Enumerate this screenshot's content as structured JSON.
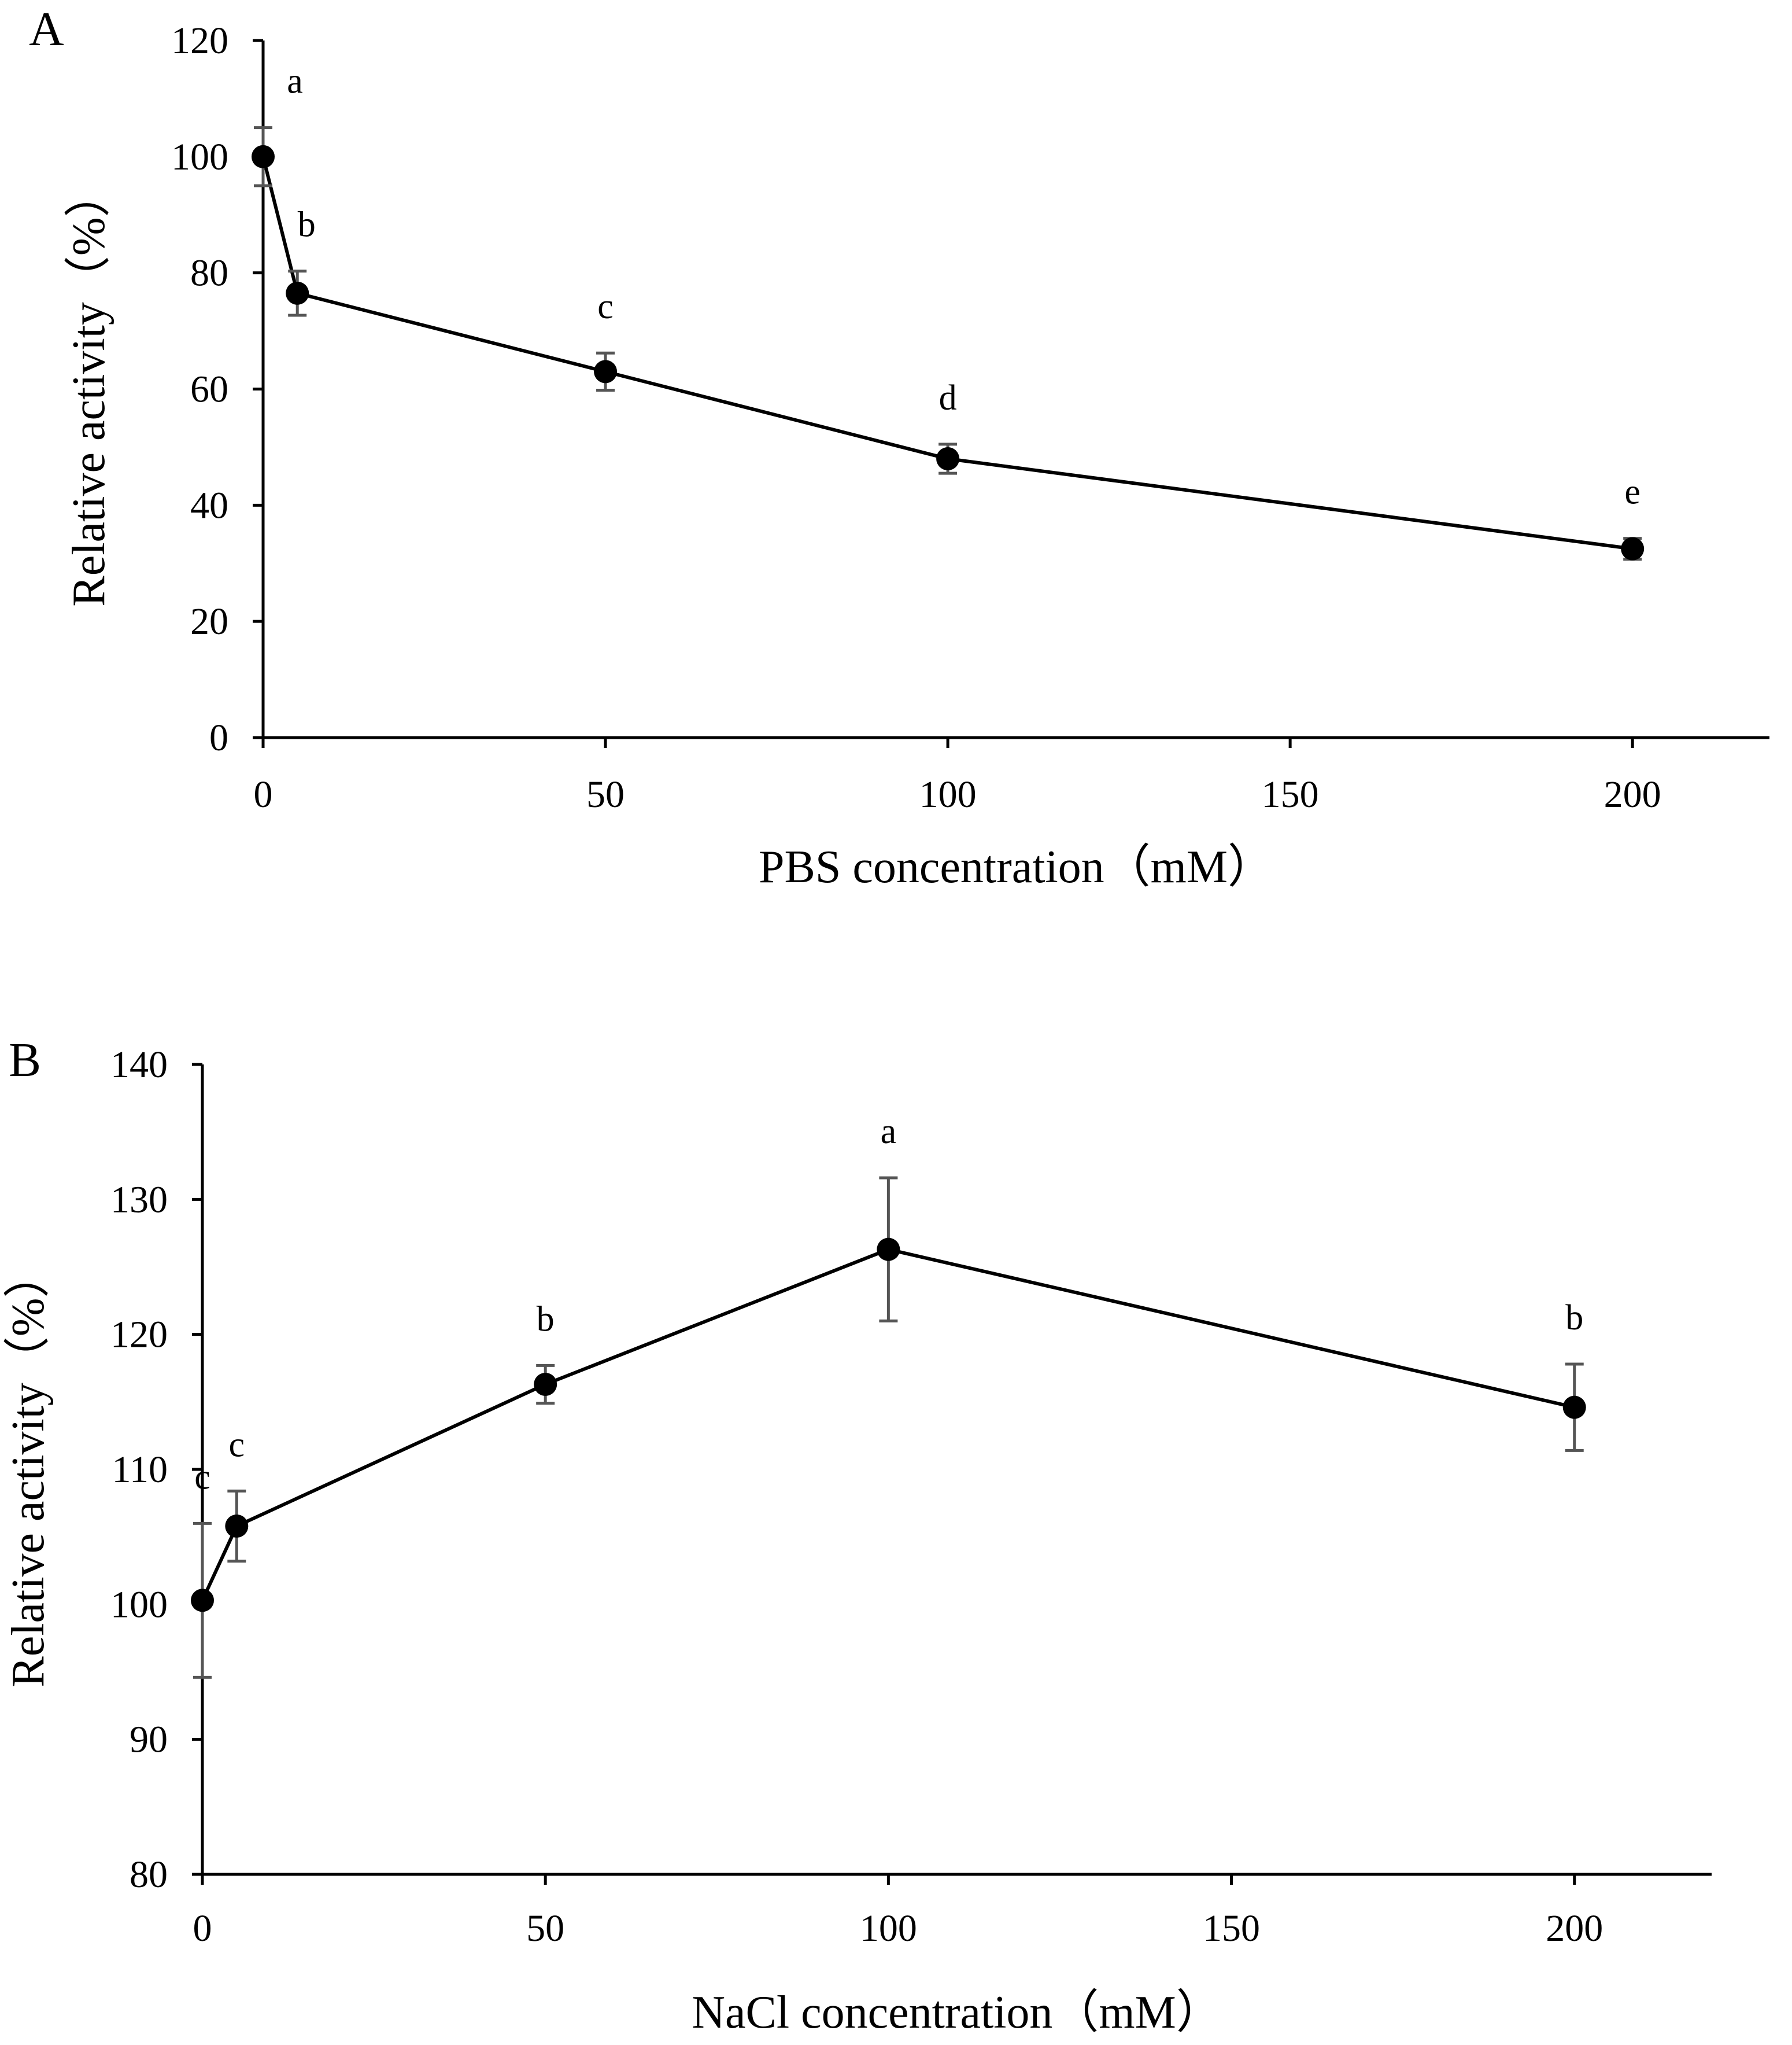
{
  "chart_data": [
    {
      "type": "line",
      "panel": "A",
      "title": "",
      "xlabel": "PBS concentration（mM）",
      "ylabel": "Relative activity（%）",
      "xlim": [
        0,
        220
      ],
      "ylim": [
        0,
        120
      ],
      "xticks": [
        0,
        50,
        100,
        150,
        200
      ],
      "yticks": [
        0,
        20,
        40,
        60,
        80,
        100,
        120
      ],
      "x": [
        0,
        5,
        50,
        100,
        200
      ],
      "y": [
        100,
        76.5,
        63,
        48,
        32.5
      ],
      "err": [
        5,
        3.8,
        3.2,
        2.5,
        1.8
      ],
      "labels": [
        "a",
        "b",
        "c",
        "d",
        "e"
      ],
      "grid": false,
      "legend": "none"
    },
    {
      "type": "line",
      "panel": "B",
      "title": "",
      "xlabel": "NaCl concentration（mM）",
      "ylabel": "Relative activity（%）",
      "xlim": [
        0,
        220
      ],
      "ylim": [
        80,
        140
      ],
      "xticks": [
        0,
        50,
        100,
        150,
        200
      ],
      "yticks": [
        80,
        90,
        100,
        110,
        120,
        130,
        140
      ],
      "x": [
        0,
        5,
        50,
        100,
        200
      ],
      "y": [
        100.3,
        105.8,
        116.3,
        126.3,
        114.6
      ],
      "err": [
        5.7,
        2.6,
        1.4,
        5.3,
        3.2
      ],
      "labels": [
        "c",
        "c",
        "b",
        "a",
        "b"
      ],
      "grid": false,
      "legend": "none"
    }
  ]
}
